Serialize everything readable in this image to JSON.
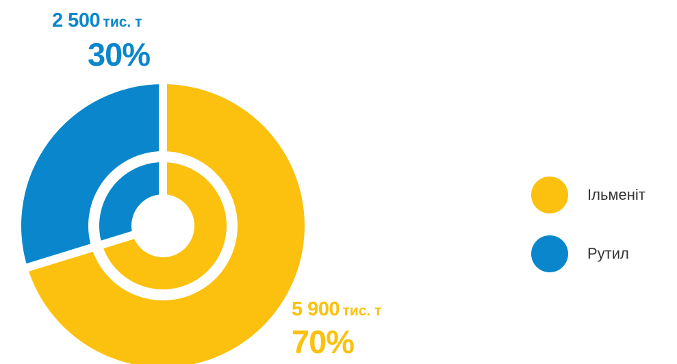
{
  "chart_data": {
    "type": "pie",
    "series": [
      {
        "name": "Ільменіт",
        "amount_label": "5 900",
        "unit": "тис. т",
        "value": 5900,
        "percent_label": "70%",
        "color": "#FCC10F"
      },
      {
        "name": "Рутил",
        "amount_label": "2 500",
        "unit": "тис. т",
        "value": 2500,
        "percent_label": "30%",
        "color": "#0A87CC"
      }
    ],
    "legend_position": "right"
  }
}
